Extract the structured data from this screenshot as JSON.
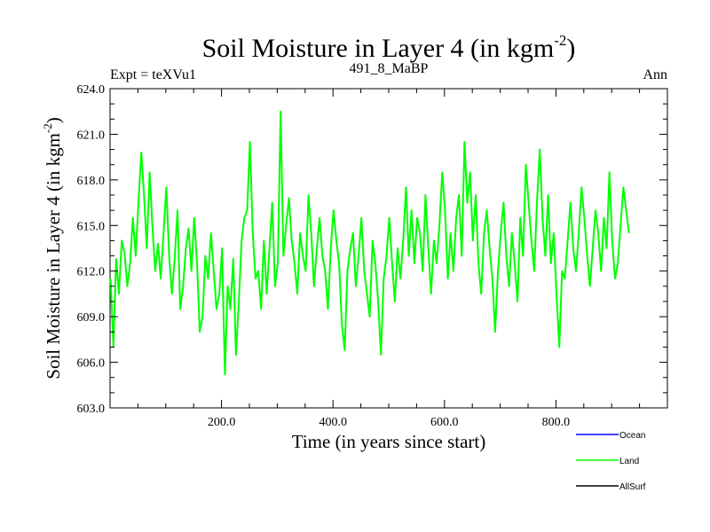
{
  "chart_data": {
    "type": "line",
    "title": "Soil Moisture in Layer 4 (in kgm",
    "title_superscript": "-2",
    "title_close": ")",
    "subtitle_left": "Expt = teXVu1",
    "subtitle_center": "491_8_MaBP",
    "subtitle_right": "Ann",
    "xlabel": "Time (in years since start)",
    "ylabel": "Soil Moisture in Layer 4 (in kgm",
    "ylabel_superscript": "-2",
    "ylabel_close": ")",
    "xlim": [
      0,
      1000
    ],
    "ylim": [
      603.0,
      624.0
    ],
    "xticks": [
      200,
      400,
      600,
      800
    ],
    "xtick_labels": [
      "200.0",
      "400.0",
      "600.0",
      "800.0"
    ],
    "yticks": [
      603,
      606,
      609,
      612,
      615,
      618,
      621,
      624
    ],
    "ytick_labels": [
      "603.0",
      "606.0",
      "609.0",
      "612.0",
      "615.0",
      "618.0",
      "621.0",
      "624.0"
    ],
    "legend": [
      {
        "name": "Ocean",
        "color": "#0000ff"
      },
      {
        "name": "Land",
        "color": "#00ff00"
      },
      {
        "name": "AllSurf",
        "color": "#000000"
      }
    ],
    "series": [
      {
        "name": "Land",
        "color": "#00ff00",
        "x_start": 1,
        "x_step": 5,
        "values": [
          611.5,
          607.0,
          612.8,
          610.5,
          614.0,
          613.2,
          611.0,
          612.5,
          615.5,
          613.0,
          616.5,
          619.8,
          617.0,
          613.5,
          618.5,
          615.0,
          612.0,
          613.8,
          611.5,
          614.5,
          617.5,
          613.0,
          610.5,
          612.8,
          616.0,
          609.5,
          611.0,
          613.5,
          614.8,
          612.0,
          615.5,
          612.5,
          608.0,
          609.0,
          613.0,
          611.5,
          614.5,
          612.0,
          609.5,
          610.5,
          613.5,
          605.2,
          611.0,
          609.5,
          612.8,
          606.5,
          610.0,
          614.0,
          615.5,
          616.0,
          620.5,
          614.5,
          611.5,
          612.0,
          609.5,
          614.0,
          610.5,
          613.5,
          616.5,
          611.0,
          612.5,
          622.5,
          613.0,
          615.0,
          616.8,
          614.0,
          612.5,
          610.5,
          614.5,
          613.0,
          612.0,
          617.0,
          614.5,
          611.0,
          613.5,
          615.5,
          613.0,
          612.0,
          609.5,
          613.5,
          616.0,
          614.0,
          612.5,
          608.5,
          606.8,
          612.0,
          613.5,
          614.5,
          611.0,
          613.0,
          615.5,
          612.0,
          610.5,
          609.0,
          614.0,
          612.5,
          610.0,
          606.5,
          611.5,
          613.0,
          615.5,
          612.5,
          610.0,
          613.5,
          611.5,
          614.0,
          617.5,
          613.0,
          616.0,
          612.5,
          615.5,
          614.5,
          612.0,
          617.0,
          613.5,
          610.5,
          614.0,
          612.5,
          615.0,
          618.5,
          616.0,
          611.5,
          614.5,
          612.0,
          615.5,
          617.0,
          613.0,
          620.5,
          616.5,
          618.5,
          614.0,
          617.0,
          612.5,
          610.5,
          614.5,
          616.0,
          613.5,
          611.5,
          608.0,
          612.0,
          614.5,
          616.5,
          613.0,
          611.0,
          614.5,
          612.5,
          610.0,
          615.5,
          613.0,
          619.0,
          616.5,
          614.0,
          612.0,
          616.5,
          620.0,
          615.5,
          613.0,
          617.0,
          612.5,
          614.5,
          610.5,
          607.0,
          612.0,
          611.5,
          614.0,
          616.5,
          613.5,
          612.0,
          614.5,
          617.5,
          615.5,
          613.0,
          611.0,
          613.5,
          616.0,
          614.5,
          612.0,
          615.5,
          613.5,
          618.5,
          614.0,
          611.5,
          612.5,
          615.0,
          617.5,
          616.0,
          614.5
        ]
      }
    ]
  }
}
